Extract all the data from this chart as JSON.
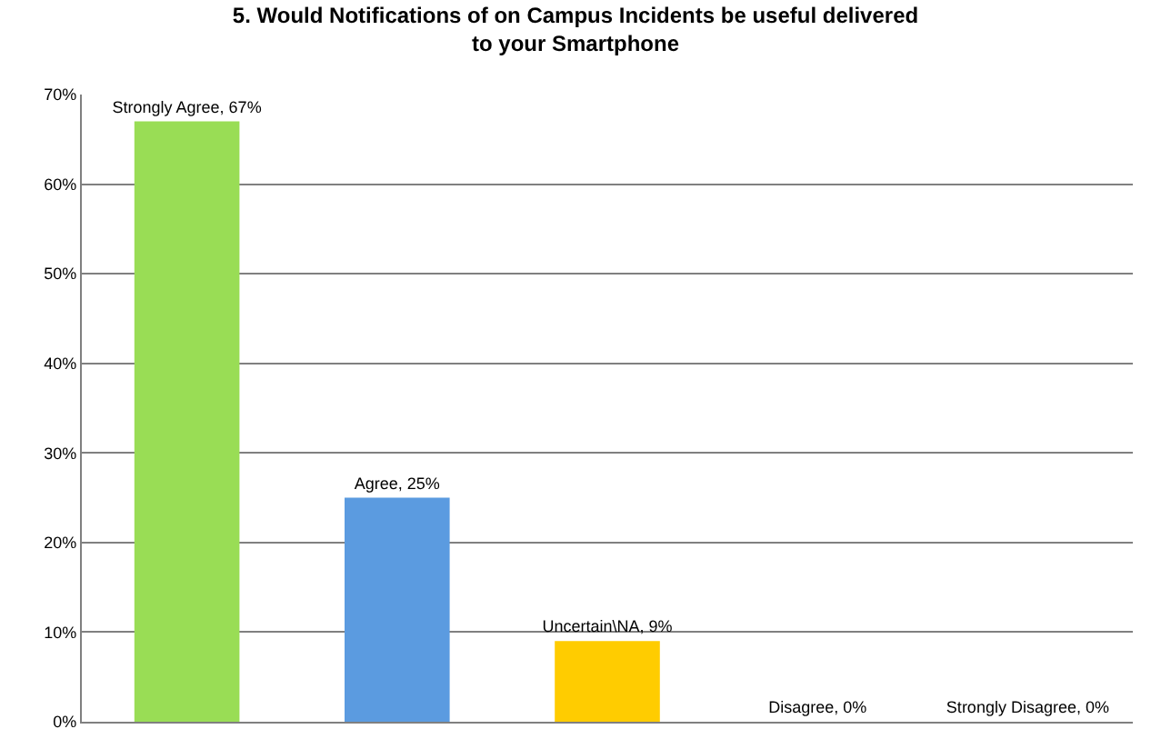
{
  "chart_data": {
    "type": "bar",
    "title": "5. Would Notifications of on Campus Incidents be useful delivered to your Smartphone",
    "categories": [
      null,
      null,
      null,
      null,
      null
    ],
    "values": [
      67,
      25,
      9,
      0,
      0
    ],
    "colors": [
      "#99dd55",
      "#5b9be0",
      "#ffcc00",
      "#c0504d",
      "#8064a2"
    ],
    "value_labels": [
      "Strongly Agree, 67%",
      "Agree, 25%",
      "Uncertain\\NA, 9%",
      "Disagree, 0%",
      "Strongly Disagree, 0%"
    ],
    "ylim": [
      0,
      70
    ],
    "yticks": [
      {
        "value": 0,
        "label": "0%"
      },
      {
        "value": 10,
        "label": "10%"
      },
      {
        "value": 20,
        "label": "20%"
      },
      {
        "value": 30,
        "label": "30%"
      },
      {
        "value": 40,
        "label": "40%"
      },
      {
        "value": 50,
        "label": "50%"
      },
      {
        "value": 60,
        "label": "60%"
      },
      {
        "value": 70,
        "label": "70%"
      }
    ],
    "grid": "y",
    "legend": false
  }
}
